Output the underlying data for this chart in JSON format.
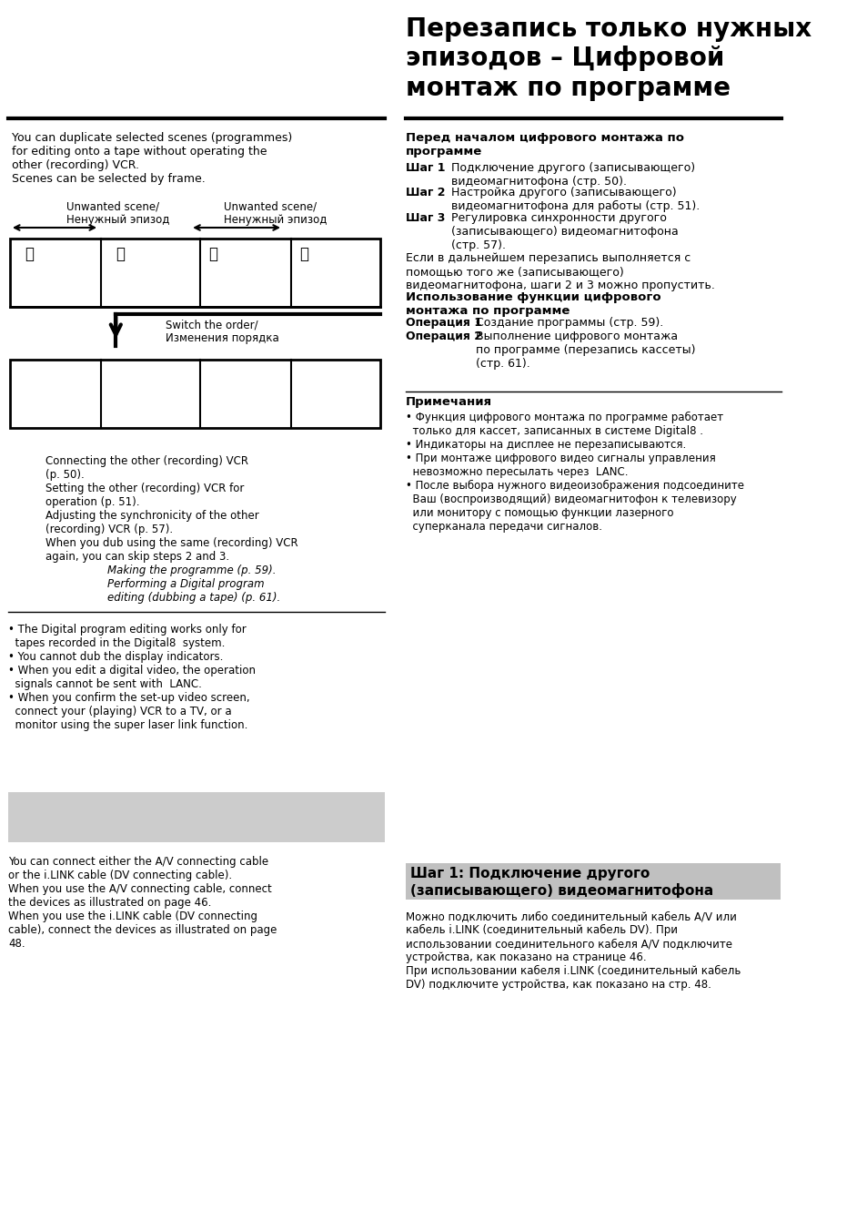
{
  "bg_color": "#ffffff",
  "title_ru": "Перезапись только нужных\nэпизодов – Цифровой\nмонтаж по программе",
  "left_intro_en": "You can duplicate selected scenes (programmes)\nfor editing onto a tape without operating the\nother (recording) VCR.\nScenes can be selected by frame.",
  "unwanted1_en": "Unwanted scene/",
  "unwanted1_ru": "Ненужный эпизод",
  "unwanted2_en": "Unwanted scene/",
  "unwanted2_ru": "Ненужный эпизод",
  "switch_text": "Switch the order/\nИзменения порядка",
  "steps_left_en": "Connecting the other (recording) VCR\n(p. 50).\nSetting the other (recording) VCR for\noperation (p. 51).\nAdjusting the synchronicity of the other\n(recording) VCR (p. 57).\nWhen you dub using the same (recording) VCR\nagain, you can skip steps 2 and 3.",
  "steps_left2_en": "Making the programme (p. 59).\nPerforming a Digital program\nediting (dubbing a tape) (p. 61).",
  "bullets_en": "• The Digital program editing works only for\n  tapes recorded in the Digital8  system.\n• You cannot dub the display indicators.\n• When you edit a digital video, the operation\n  signals cannot be sent with  LANC.\n• When you confirm the set-up video screen,\n  connect your (playing) VCR to a TV, or a\n  monitor using the super laser link function.",
  "right_section1_title": "Перед началом цифрового монтажа по\nпрограмме",
  "shag1_label": "Шаг 1",
  "shag1_text": "Подключение другого (записывающего)\nвидеомагнитофона (стр. 50).",
  "shag2_label": "Шаг 2",
  "shag2_text": "Настройка другого (записывающего)\nвидеомагнитофона для работы (стр. 51).",
  "shag3_label": "Шаг 3",
  "shag3_text": "Регулировка синхронности другого\n(записывающего) видеомагнитофона\n(стр. 57).",
  "note_ru": "Если в дальнейшем перезапись выполняется с\nпомощью того же (записывающего)\nвидеомагнитофона, шаги 2 и 3 можно пропустить.",
  "right_section2_title": "Использование функции цифрового\nмонтажа по программе",
  "op1_label": "Операция 1",
  "op1_text": "Создание программы (стр. 59).",
  "op2_label": "Операция 2",
  "op2_text": "Выполнение цифрового монтажа\nпо программе (перезапись кассеты)\n(стр. 61).",
  "примечания_title": "Примечания",
  "bullets_ru": "• Функция цифрового монтажа по программе работает\n  только для кассет, записанных в системе Digital8 .\n• Индикаторы на дисплее не перезаписываются.\n• При монтаже цифрового видео сигналы управления\n  невозможно пересылать через  LANC.\n• После выбора нужного видеоизображения подсоедините\n  Ваш (воспроизводящий) видеомагнитофон к телевизору\n  или монитору с помощью функции лазерного\n  суперканала передачи сигналов.",
  "bottom_box_title": "Шаг 1: Подключение другого\n(записывающего) видеомагнитофона",
  "bottom_text_left": "Можно подключить либо соединительный кабель A/V или\nкабель i.LINK (соединительный кабель DV). При\nиспользовании соединительного кабеля A/V подключите\nустройства, как показано на странице 46.\nПри использовании кабеля i.LINK (соединительный кабель\nDV) подключите устройства, как показано на стр. 48.",
  "bottom_text_left_en": "You can connect either the A/V connecting cable\nor the i.LINK cable (DV connecting cable).\nWhen you use the A/V connecting cable, connect\nthe devices as illustrated on page 46.\nWhen you use the i.LINK cable (DV connecting\ncable), connect the devices as illustrated on page\n48."
}
